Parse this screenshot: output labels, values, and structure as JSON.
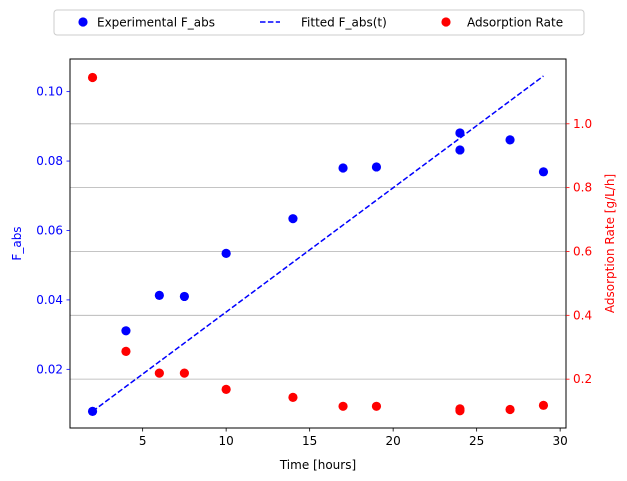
{
  "chart_data": {
    "type": "scatter",
    "xlabel": "Time [hours]",
    "ylabel_left": "F_abs",
    "ylabel_right": "Adsorption Rate [g/L/h]",
    "xlim": [
      0.65,
      30.35
    ],
    "ylim_left": [
      0.0031,
      0.1094
    ],
    "ylim_right": [
      0.047,
      1.203
    ],
    "x_ticks": [
      5,
      10,
      15,
      20,
      25,
      30
    ],
    "y_left_ticks": [
      0.02,
      0.04,
      0.06,
      0.08,
      0.1
    ],
    "y_right_ticks": [
      0.2,
      0.4,
      0.6,
      0.8,
      1.0
    ],
    "grid": "right-axis horizontal lines",
    "legend": "top-center, above plot",
    "colors": {
      "left_axis": "#0000ff",
      "right_axis": "#ff0000",
      "grid": "#b0b0b0"
    },
    "series": [
      {
        "name": "Experimental F_abs",
        "kind": "markers",
        "axis": "left",
        "color": "#0000ff",
        "x": [
          2,
          4,
          6,
          7.5,
          10,
          14,
          17,
          19,
          24,
          24,
          27,
          29
        ],
        "y": [
          0.0079,
          0.0311,
          0.0413,
          0.041,
          0.0534,
          0.0634,
          0.078,
          0.0783,
          0.0881,
          0.0832,
          0.0861,
          0.0769
        ]
      },
      {
        "name": "Fitted F_abs(t)",
        "kind": "dashed-line",
        "axis": "left",
        "color": "#0000ff",
        "x": [
          2,
          29
        ],
        "y": [
          0.0079,
          0.1045
        ]
      },
      {
        "name": "Adsorption Rate",
        "kind": "markers",
        "axis": "right",
        "color": "#ff0000",
        "x": [
          2,
          4,
          6,
          7.5,
          10,
          14,
          17,
          19,
          24,
          24,
          27,
          29
        ],
        "y": [
          1.145,
          0.287,
          0.219,
          0.219,
          0.168,
          0.143,
          0.115,
          0.115,
          0.107,
          0.101,
          0.105,
          0.118
        ]
      }
    ]
  }
}
